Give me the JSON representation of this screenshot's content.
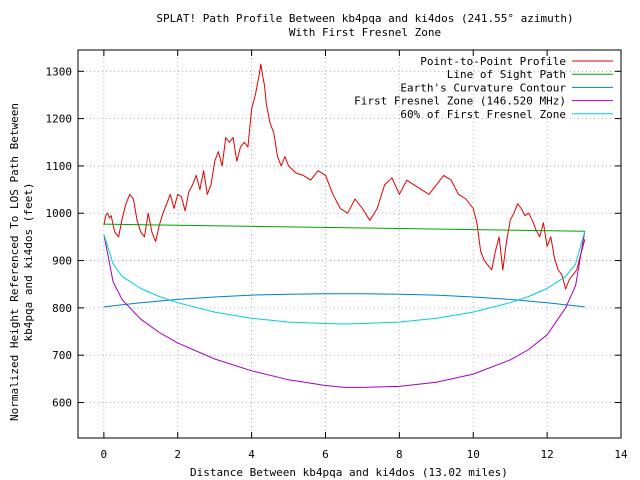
{
  "chart_data": {
    "type": "line",
    "title": "SPLAT! Path Profile Between kb4pqa and ki4dos (241.55° azimuth)",
    "subtitle": "With First Fresnel Zone",
    "xlabel": "Distance Between kb4pqa and ki4dos (13.02 miles)",
    "ylabel_line1": "Normalized Height Referenced To LOS Path Between",
    "ylabel_line2": "kb4pqa and ki4dos (feet)",
    "xlim": [
      -0.7,
      14
    ],
    "ylim": [
      525,
      1345
    ],
    "xticks": [
      0,
      2,
      4,
      6,
      8,
      10,
      12,
      14
    ],
    "yticks": [
      600,
      700,
      800,
      900,
      1000,
      1100,
      1200,
      1300
    ],
    "grid": true,
    "legend_position": "top-right",
    "series": [
      {
        "name": "Point-to-Point Profile",
        "color": "#e00000",
        "x": [
          0,
          0.05,
          0.1,
          0.15,
          0.2,
          0.25,
          0.3,
          0.4,
          0.5,
          0.6,
          0.7,
          0.8,
          0.9,
          1.0,
          1.1,
          1.2,
          1.3,
          1.4,
          1.5,
          1.6,
          1.7,
          1.8,
          1.9,
          2.0,
          2.1,
          2.2,
          2.3,
          2.4,
          2.5,
          2.6,
          2.7,
          2.8,
          2.9,
          3.0,
          3.1,
          3.2,
          3.3,
          3.4,
          3.5,
          3.6,
          3.7,
          3.8,
          3.9,
          4.0,
          4.1,
          4.2,
          4.25,
          4.3,
          4.35,
          4.4,
          4.5,
          4.6,
          4.7,
          4.8,
          4.9,
          5.0,
          5.2,
          5.4,
          5.6,
          5.8,
          6.0,
          6.2,
          6.4,
          6.6,
          6.8,
          7.0,
          7.2,
          7.4,
          7.6,
          7.8,
          8.0,
          8.2,
          8.4,
          8.6,
          8.8,
          9.0,
          9.2,
          9.4,
          9.6,
          9.8,
          10.0,
          10.1,
          10.2,
          10.3,
          10.4,
          10.5,
          10.6,
          10.7,
          10.8,
          10.9,
          11.0,
          11.1,
          11.2,
          11.3,
          11.4,
          11.5,
          11.6,
          11.7,
          11.8,
          11.9,
          12.0,
          12.1,
          12.2,
          12.3,
          12.4,
          12.5,
          12.6,
          12.7,
          12.8,
          12.9,
          13.02
        ],
        "values": [
          975,
          995,
          1000,
          990,
          995,
          975,
          960,
          950,
          990,
          1020,
          1040,
          1030,
          985,
          960,
          950,
          1000,
          960,
          940,
          975,
          1000,
          1020,
          1040,
          1010,
          1040,
          1035,
          1005,
          1045,
          1060,
          1080,
          1050,
          1090,
          1040,
          1060,
          1110,
          1130,
          1100,
          1160,
          1150,
          1160,
          1110,
          1140,
          1150,
          1140,
          1220,
          1250,
          1290,
          1315,
          1290,
          1270,
          1230,
          1190,
          1170,
          1120,
          1100,
          1120,
          1100,
          1085,
          1080,
          1070,
          1090,
          1080,
          1040,
          1010,
          1000,
          1030,
          1010,
          985,
          1010,
          1060,
          1075,
          1040,
          1070,
          1060,
          1050,
          1040,
          1060,
          1080,
          1070,
          1040,
          1030,
          1010,
          980,
          920,
          900,
          890,
          880,
          920,
          950,
          880,
          940,
          985,
          1000,
          1020,
          1010,
          995,
          1000,
          985,
          965,
          950,
          980,
          930,
          950,
          905,
          880,
          870,
          840,
          860,
          870,
          880,
          910,
          945
        ]
      },
      {
        "name": "Line of Sight Path",
        "color": "#00a000",
        "x": [
          0,
          13.02
        ],
        "values": [
          977,
          962
        ]
      },
      {
        "name": "Earth's Curvature Contour",
        "color": "#0080c0",
        "x": [
          0,
          1,
          2,
          3,
          4,
          5,
          6,
          6.51,
          7,
          8,
          9,
          10,
          11,
          12,
          13.02
        ],
        "values": [
          802,
          811,
          818,
          823,
          827,
          829,
          830,
          830,
          830,
          829,
          827,
          823,
          818,
          811,
          802
        ]
      },
      {
        "name": "First Fresnel Zone (146.520 MHz)",
        "color": "#a000c0",
        "x": [
          0,
          0.25,
          0.5,
          1,
          1.5,
          2,
          3,
          4,
          5,
          6,
          6.51,
          7,
          8,
          9,
          10,
          11,
          11.5,
          12,
          12.5,
          12.77,
          13.02
        ],
        "values": [
          955,
          855,
          817,
          776,
          748,
          726,
          692,
          667,
          648,
          636,
          632,
          632,
          634,
          643,
          660,
          690,
          712,
          743,
          800,
          847,
          962
        ]
      },
      {
        "name": "60% of First Fresnel Zone",
        "color": "#00d0d0",
        "x": [
          0,
          0.25,
          0.5,
          1,
          1.5,
          2,
          3,
          4,
          5,
          6,
          6.51,
          7,
          8,
          9,
          10,
          11,
          11.5,
          12,
          12.5,
          12.77,
          13.02
        ],
        "values": [
          955,
          893,
          866,
          841,
          824,
          811,
          791,
          778,
          770,
          767,
          766,
          767,
          770,
          778,
          791,
          811,
          824,
          841,
          866,
          893,
          962
        ]
      }
    ]
  }
}
